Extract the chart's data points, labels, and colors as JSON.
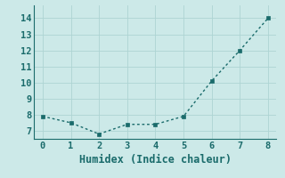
{
  "x": [
    0,
    1,
    2,
    3,
    4,
    5,
    6,
    7,
    8
  ],
  "y": [
    7.9,
    7.5,
    6.8,
    7.4,
    7.4,
    7.9,
    10.1,
    12.0,
    14.0
  ],
  "xlim": [
    -0.3,
    8.3
  ],
  "ylim": [
    6.5,
    14.8
  ],
  "xticks": [
    0,
    1,
    2,
    3,
    4,
    5,
    6,
    7,
    8
  ],
  "yticks": [
    7,
    8,
    9,
    10,
    11,
    12,
    13,
    14
  ],
  "xlabel": "Humidex (Indice chaleur)",
  "background_color": "#cce9e8",
  "line_color": "#1a6b6b",
  "grid_color": "#aed4d3",
  "tick_label_fontsize": 7.5,
  "xlabel_fontsize": 8.5
}
